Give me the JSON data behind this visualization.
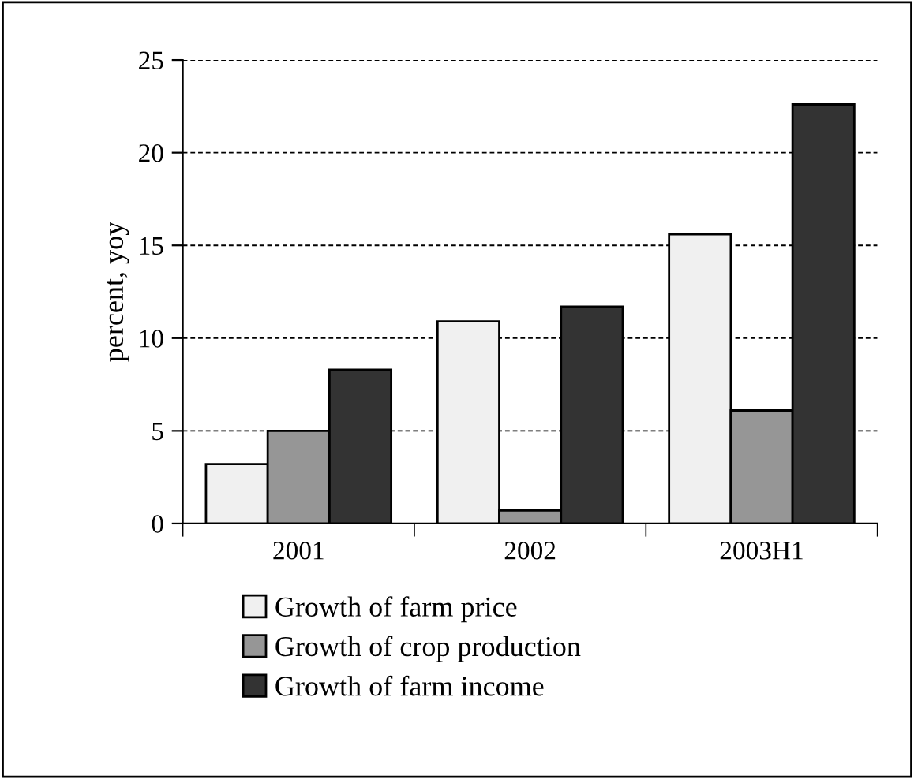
{
  "chart_data": {
    "type": "bar",
    "ylabel": "percent, yoy",
    "categories": [
      "2001",
      "2002",
      "2003H1"
    ],
    "series": [
      {
        "name": "Growth of farm price",
        "color": "#f0f0f0",
        "values": [
          3.2,
          10.9,
          15.6
        ]
      },
      {
        "name": "Growth of crop production",
        "color": "#969696",
        "values": [
          5.0,
          0.7,
          6.1
        ]
      },
      {
        "name": "Growth of farm income",
        "color": "#333333",
        "values": [
          8.3,
          11.7,
          22.6
        ]
      }
    ],
    "ylim": [
      0,
      25
    ],
    "yticks": [
      0,
      5,
      10,
      15,
      20,
      25
    ],
    "grid": "y",
    "legend": "bottom"
  }
}
